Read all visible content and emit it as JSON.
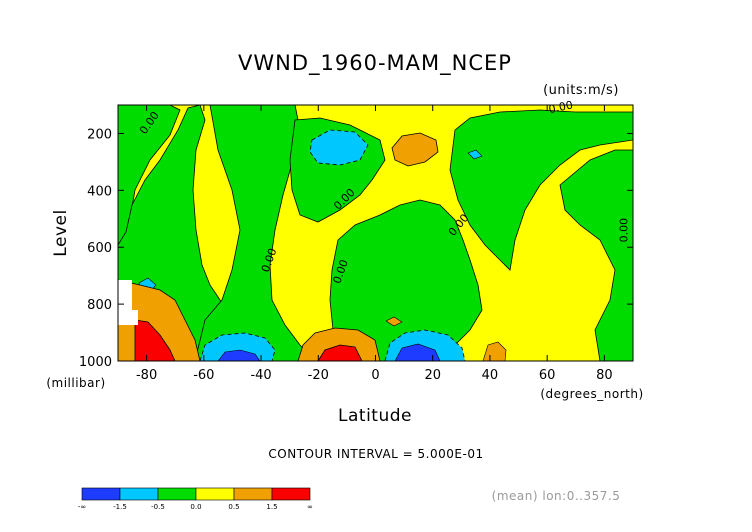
{
  "chart_data": {
    "type": "contour",
    "title": "VWND_1960-MAM_NCEP",
    "units": "(units:m/s)",
    "xlabel": "Latitude",
    "xunits": "(degrees_north)",
    "ylabel": "Level",
    "yunits": "(millibar)",
    "xlim": [
      -90,
      90
    ],
    "ylim": [
      1000,
      100
    ],
    "x_ticks": [
      "-80",
      "-60",
      "-40",
      "-20",
      "0",
      "20",
      "40",
      "60",
      "80"
    ],
    "x_tick_values": [
      -80,
      -60,
      -40,
      -20,
      0,
      20,
      40,
      60,
      80
    ],
    "y_ticks": [
      "200",
      "400",
      "600",
      "800",
      "1000"
    ],
    "y_tick_values": [
      200,
      400,
      600,
      800,
      1000
    ],
    "contour_interval_text": "CONTOUR INTERVAL = 5.000E-01",
    "contour_labels": [
      {
        "text": "0.00",
        "lat": -78,
        "lev": 170,
        "angle": -55
      },
      {
        "text": "0.00",
        "lat": 65,
        "lev": 120,
        "angle": -12
      },
      {
        "text": "0.00",
        "lat": -10,
        "lev": 440,
        "angle": -45
      },
      {
        "text": "0.00",
        "lat": 30,
        "lev": 530,
        "angle": -50
      },
      {
        "text": "0.00",
        "lat": 88,
        "lev": 540,
        "angle": -90
      },
      {
        "text": "0.00",
        "lat": -36,
        "lev": 650,
        "angle": -70
      },
      {
        "text": "0.00",
        "lat": -11,
        "lev": 690,
        "angle": -70
      }
    ],
    "colorbar": {
      "labels": [
        "-∞",
        "-1.5",
        "-0.5",
        "0.0",
        "0.5",
        "1.5",
        "∞"
      ],
      "colors": [
        "#1e3cff",
        "#00c8ff",
        "#00dc00",
        "#ffff00",
        "#f0a000",
        "#fa0000"
      ]
    },
    "regions": [
      {
        "level_color": "#00dc00",
        "lat": [
          -88,
          -75
        ],
        "lev": [
          100,
          500
        ]
      },
      {
        "level_color": "#00dc00",
        "lat": [
          -66,
          -30
        ],
        "lev": [
          100,
          1000
        ]
      },
      {
        "level_color": "#00dc00",
        "lat": [
          -28,
          14
        ],
        "lev": [
          100,
          260
        ]
      },
      {
        "level_color": "#00dc00",
        "lat": [
          -16,
          32
        ],
        "lev": [
          460,
          980
        ]
      },
      {
        "level_color": "#00dc00",
        "lat": [
          30,
          80
        ],
        "lev": [
          150,
          520
        ]
      },
      {
        "level_color": "#00dc00",
        "lat": [
          53,
          90
        ],
        "lev": [
          180,
          700
        ]
      },
      {
        "level_color": "#00c8ff",
        "lat": [
          -22,
          -4
        ],
        "lev": [
          130,
          250
        ]
      },
      {
        "level_color": "#00c8ff",
        "lat": [
          -60,
          -38
        ],
        "lev": [
          880,
          1000
        ]
      },
      {
        "level_color": "#00c8ff",
        "lat": [
          3,
          30
        ],
        "lev": [
          880,
          1000
        ]
      },
      {
        "level_color": "#00c8ff",
        "lat": [
          -88,
          -82
        ],
        "lev": [
          640,
          720
        ]
      },
      {
        "level_color": "#1e3cff",
        "lat": [
          -53,
          -41
        ],
        "lev": [
          960,
          1000
        ]
      },
      {
        "level_color": "#1e3cff",
        "lat": [
          8,
          24
        ],
        "lev": [
          940,
          1000
        ]
      },
      {
        "level_color": "#f0a000",
        "lat": [
          2,
          24
        ],
        "lev": [
          100,
          230
        ]
      },
      {
        "level_color": "#f0a000",
        "lat": [
          -25,
          0
        ],
        "lev": [
          860,
          1000
        ]
      },
      {
        "level_color": "#f0a000",
        "lat": [
          -88,
          -69
        ],
        "lev": [
          720,
          1000
        ]
      },
      {
        "level_color": "#fa0000",
        "lat": [
          -20,
          -6
        ],
        "lev": [
          940,
          1000
        ]
      },
      {
        "level_color": "#fa0000",
        "lat": [
          -82,
          -75
        ],
        "lev": [
          860,
          1000
        ]
      }
    ],
    "grid": false
  },
  "footer_text": "(mean) lon:0..357.5"
}
